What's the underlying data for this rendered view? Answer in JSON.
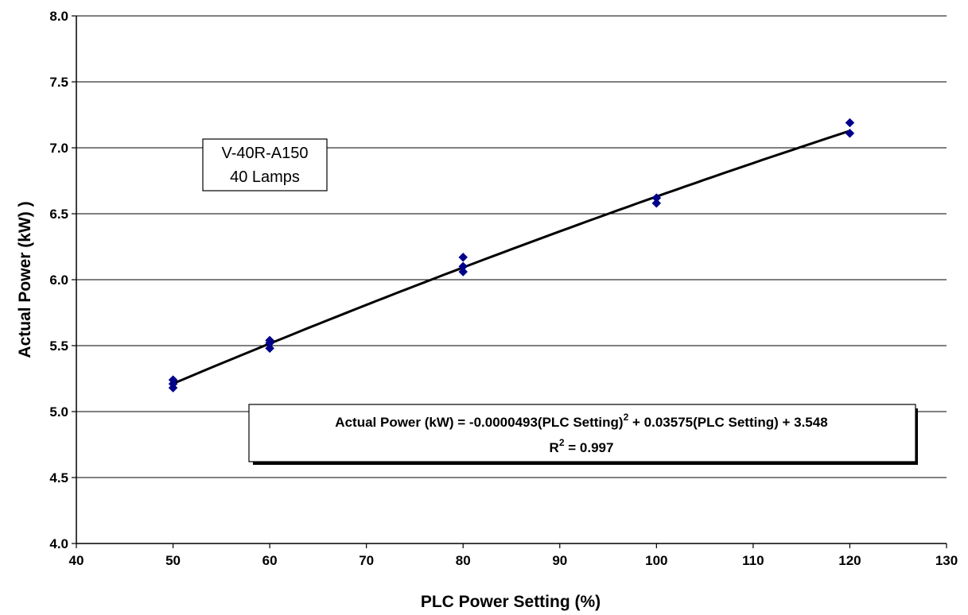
{
  "chart_data": {
    "type": "scatter",
    "xlabel": "PLC Power Setting (%)",
    "ylabel": "Actual Power (kW) )",
    "xlim": [
      40,
      130
    ],
    "ylim": [
      4.0,
      8.0
    ],
    "x_ticks": [
      "40",
      "50",
      "60",
      "70",
      "80",
      "90",
      "100",
      "110",
      "120",
      "130"
    ],
    "y_ticks": [
      "4.0",
      "4.5",
      "5.0",
      "5.5",
      "6.0",
      "6.5",
      "7.0",
      "7.5",
      "8.0"
    ],
    "grid": "horizontal",
    "series": [
      {
        "points": [
          {
            "x": 50,
            "y": 5.18
          },
          {
            "x": 50,
            "y": 5.21
          },
          {
            "x": 50,
            "y": 5.24
          },
          {
            "x": 60,
            "y": 5.48
          },
          {
            "x": 60,
            "y": 5.52
          },
          {
            "x": 60,
            "y": 5.54
          },
          {
            "x": 80,
            "y": 6.06
          },
          {
            "x": 80,
            "y": 6.1
          },
          {
            "x": 80,
            "y": 6.17
          },
          {
            "x": 100,
            "y": 6.58
          },
          {
            "x": 100,
            "y": 6.62
          },
          {
            "x": 120,
            "y": 7.11
          },
          {
            "x": 120,
            "y": 7.19
          }
        ],
        "marker": "diamond",
        "color": "#00008B"
      }
    ],
    "trendline": {
      "type": "polynomial",
      "coefficients": {
        "a": -4.93e-05,
        "b": 0.03575,
        "c": 3.548
      },
      "x_range": [
        50,
        120
      ],
      "color": "#000000"
    },
    "annotations": {
      "label_box": {
        "line1": "V-40R-A150",
        "line2": "40 Lamps"
      },
      "equation_box": {
        "eq_part1": "Actual Power (kW) = -0.0000493(PLC Setting)",
        "eq_sup": "2",
        "eq_part2": " + 0.03575(PLC Setting) + 3.548",
        "r2_prefix": "R",
        "r2_sup": "2",
        "r2_value": " = 0.997"
      }
    }
  }
}
